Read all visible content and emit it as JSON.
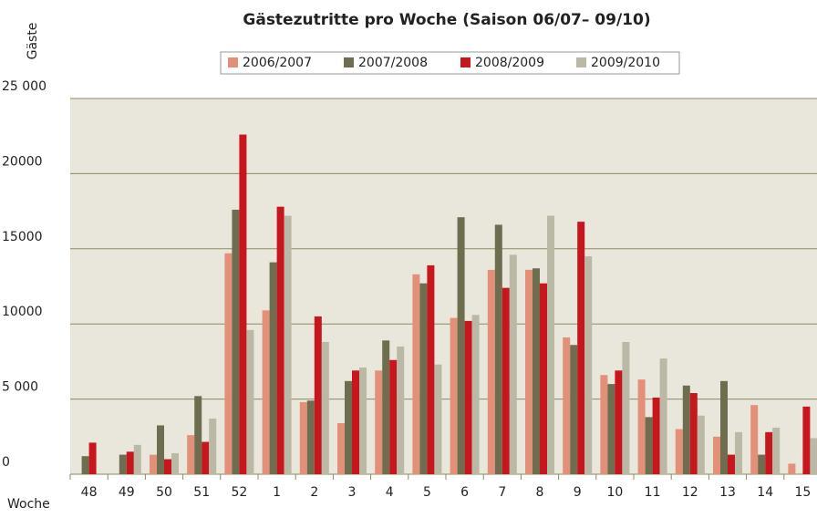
{
  "chart_data": {
    "type": "bar",
    "title": "Gästezutritte pro Woche (Saison 06/07– 09/10)",
    "y_label": "Gäste",
    "x_label": "Woche",
    "categories": [
      "48",
      "49",
      "50",
      "51",
      "52",
      "1",
      "2",
      "3",
      "4",
      "5",
      "6",
      "7",
      "8",
      "9",
      "10",
      "11",
      "12",
      "13",
      "14",
      "15"
    ],
    "series": [
      {
        "name": "2006/2007",
        "color": "#e3907a",
        "values": [
          null,
          null,
          1300,
          2600,
          14700,
          10900,
          4800,
          3400,
          6900,
          13300,
          10400,
          13600,
          13600,
          9100,
          6600,
          6300,
          3000,
          2500,
          4600,
          700
        ]
      },
      {
        "name": "2007/2008",
        "color": "#6f6d4f",
        "values": [
          1200,
          1300,
          3250,
          5200,
          17600,
          14100,
          4900,
          6200,
          8900,
          12700,
          17100,
          16600,
          13700,
          8600,
          6000,
          3800,
          5900,
          6200,
          1300,
          null
        ]
      },
      {
        "name": "2008/2009",
        "color": "#c8161e",
        "values": [
          2100,
          1500,
          1000,
          2150,
          22600,
          17800,
          10500,
          6900,
          7600,
          13900,
          10200,
          12400,
          12700,
          16800,
          6900,
          5100,
          5400,
          1300,
          2800,
          4500
        ]
      },
      {
        "name": "2009/2010",
        "color": "#bab9a5",
        "values": [
          null,
          1950,
          1400,
          3700,
          9600,
          17200,
          8800,
          7100,
          8500,
          7300,
          10600,
          14600,
          17200,
          14500,
          8800,
          7700,
          3900,
          2800,
          3100,
          2400
        ]
      }
    ],
    "ylim": [
      0,
      25000
    ],
    "yticks": [
      0,
      {
        "value": 5000,
        "label": "5 000"
      },
      10000,
      15000,
      20000,
      {
        "value": 25000,
        "label": "25 000"
      }
    ],
    "grid": true
  }
}
